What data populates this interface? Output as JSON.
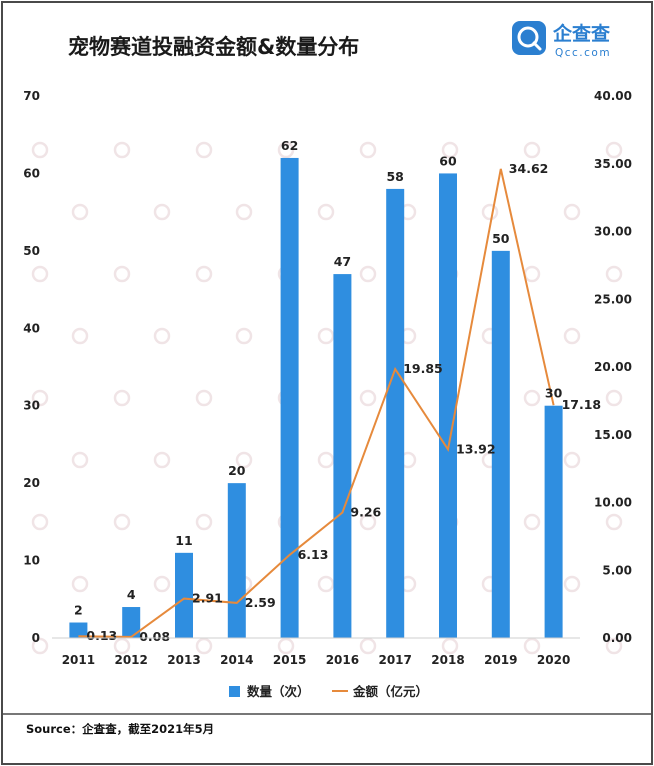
{
  "title": "宠物赛道投融资金额&数量分布",
  "brand": {
    "name": "企查查",
    "sub": "Qcc.com"
  },
  "source": "Source：企查查，截至2021年5月",
  "colors": {
    "bar": "#2f8ee0",
    "line": "#e68a3c",
    "border": "#4a4a4a",
    "grid": "#dddddd"
  },
  "icons": {
    "logo": "qcc-logo-icon"
  },
  "chart_data": {
    "type": "bar",
    "categories": [
      "2011",
      "2012",
      "2013",
      "2014",
      "2015",
      "2016",
      "2017",
      "2018",
      "2019",
      "2020"
    ],
    "series": [
      {
        "name": "数量（次）",
        "type": "bar",
        "axis": "left",
        "values": [
          2,
          4,
          11,
          20,
          62,
          47,
          58,
          60,
          50,
          30
        ],
        "labels": [
          "2",
          "4",
          "11",
          "20",
          "62",
          "47",
          "58",
          "60",
          "50",
          "30"
        ]
      },
      {
        "name": "金额（亿元）",
        "type": "line",
        "axis": "right",
        "values": [
          0.13,
          0.08,
          2.91,
          2.59,
          6.13,
          9.26,
          19.85,
          13.92,
          34.62,
          17.18
        ],
        "labels": [
          "0.13",
          "0.08",
          "2.91",
          "2.59",
          "6.13",
          "9.26",
          "19.85",
          "13.92",
          "34.62",
          "17.18"
        ]
      }
    ],
    "ylim_left": [
      0,
      70
    ],
    "yticks_left": [
      "0",
      "10",
      "20",
      "30",
      "40",
      "50",
      "60",
      "70"
    ],
    "ylim_right": [
      0,
      40
    ],
    "yticks_right": [
      "0.00",
      "5.00",
      "10.00",
      "15.00",
      "20.00",
      "25.00",
      "30.00",
      "35.00",
      "40.00"
    ],
    "legend_position": "bottom",
    "grid": false
  }
}
